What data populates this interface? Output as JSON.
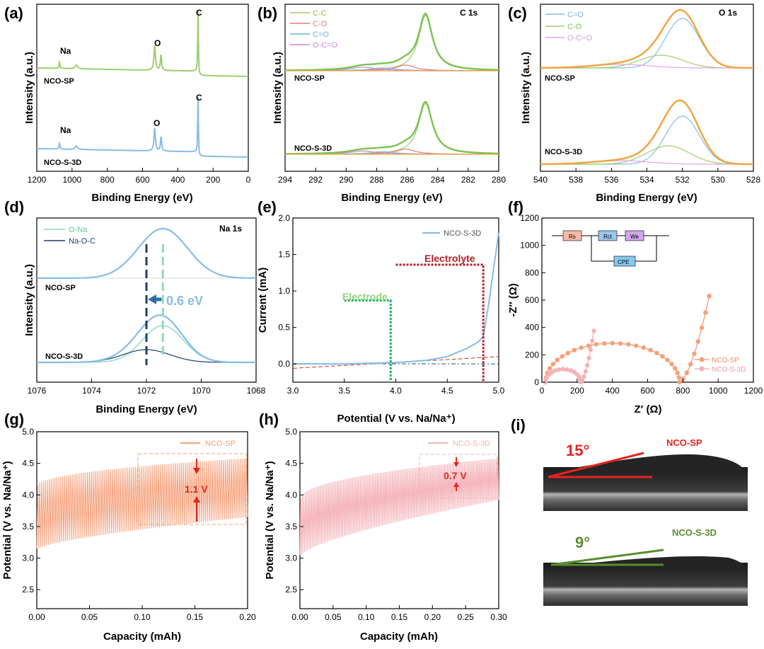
{
  "colors": {
    "green": "#9ccf6f",
    "green_dark": "#7cc34f",
    "blue": "#86bde6",
    "blue_dark": "#5a9fd6",
    "red": "#e87a7a",
    "violet": "#c987d8",
    "orange": "#f4a23a",
    "navy": "#1f3f66",
    "teal": "#8fd6c3",
    "salmon": "#f5a07a",
    "pink": "#f4b3b8",
    "elec_green": "#1fb15a",
    "elec_red": "#b21e24",
    "angle_red": "#e8231e",
    "angle_green": "#5a8c2e"
  },
  "panels": {
    "a": {
      "letter": "(a)",
      "xlabel": "Binding Energy (eV)",
      "ylabel": "Intensity (a.u.)",
      "xticks": [
        "1200",
        "1000",
        "800",
        "600",
        "400",
        "200",
        "0"
      ],
      "peaks_top": [
        "Na",
        "O",
        "C"
      ],
      "peaks_bottom": [
        "Na",
        "O",
        "C"
      ],
      "sample_top": "NCO-SP",
      "sample_bottom": "NCO-S-3D"
    },
    "b": {
      "letter": "(b)",
      "title": "C 1s",
      "xlabel": "Binding Energy (eV)",
      "ylabel": "Intensity (a.u.)",
      "xticks": [
        "294",
        "292",
        "290",
        "288",
        "286",
        "284",
        "282",
        "280"
      ],
      "legend": [
        "C-C",
        "C-O",
        "C=O",
        "O-C=O"
      ],
      "sample_top": "NCO-SP",
      "sample_bottom": "NCO-S-3D"
    },
    "c": {
      "letter": "(c)",
      "title": "O 1s",
      "xlabel": "Binding Energy (eV)",
      "ylabel": "Intensity (a.u.)",
      "xticks": [
        "540",
        "538",
        "536",
        "534",
        "532",
        "530",
        "528"
      ],
      "legend": [
        "C=O",
        "C-O",
        "O-C=O"
      ],
      "sample_top": "NCO-SP",
      "sample_bottom": "NCO-S-3D"
    },
    "d": {
      "letter": "(d)",
      "title": "Na 1s",
      "xlabel": "Binding Energy (eV)",
      "ylabel": "Intensity (a.u.)",
      "xticks": [
        "1076",
        "1074",
        "1072",
        "1070",
        "1068"
      ],
      "legend": [
        "O-Na",
        "Na-O-C"
      ],
      "shift": "0.6 eV",
      "sample_top": "NCO-SP",
      "sample_bottom": "NCO-S-3D"
    },
    "e": {
      "letter": "(e)",
      "xlabel": "Potential (V vs. Na/Na⁺)",
      "ylabel": "Current (mA)",
      "xticks": [
        "3.0",
        "3.5",
        "4.0",
        "4.5",
        "5.0"
      ],
      "yticks": [
        "0.0",
        "0.5",
        "1.0",
        "1.5",
        "2.0"
      ],
      "legend": "NCO-S-3D",
      "electrode": "Electrode",
      "electrolyte": "Electrolyte"
    },
    "f": {
      "letter": "(f)",
      "xlabel": "Z′ (Ω)",
      "ylabel": "-Z′′ (Ω)",
      "xticks": [
        "0",
        "200",
        "400",
        "600",
        "800",
        "1000",
        "1200"
      ],
      "yticks": [
        "0",
        "200",
        "400",
        "600",
        "800",
        "1000",
        "1200"
      ],
      "legend": [
        "NCO-SP",
        "NCO-S-3D"
      ],
      "circuit": [
        "Rs",
        "Rct",
        "We",
        "CPE"
      ]
    },
    "g": {
      "letter": "(g)",
      "xlabel": "Capacity (mAh)",
      "ylabel": "Potential (V vs. Na/Na⁺)",
      "xticks": [
        "0.00",
        "0.05",
        "0.10",
        "0.15",
        "0.20"
      ],
      "yticks": [
        "2.5",
        "3.0",
        "3.5",
        "4.0",
        "4.5",
        "5.0"
      ],
      "legend": "NCO-SP",
      "gap": "1.1 V"
    },
    "h": {
      "letter": "(h)",
      "xlabel": "Capacity (mAh)",
      "ylabel": "Potential (V vs. Na/Na⁺)",
      "xticks": [
        "0.00",
        "0.05",
        "0.10",
        "0.15",
        "0.20",
        "0.25",
        "0.30"
      ],
      "yticks": [
        "2.5",
        "3.0",
        "3.5",
        "4.0",
        "4.5",
        "5.0"
      ],
      "legend": "NCO-S-3D",
      "gap": "0.7 V"
    },
    "i": {
      "letter": "(i)",
      "angle_top": "15°",
      "label_top": "NCO-SP",
      "angle_bottom": "9°",
      "label_bottom": "NCO-S-3D"
    }
  },
  "chart_data": [
    {
      "panel": "a",
      "type": "line",
      "xlim": [
        1200,
        0
      ],
      "xlabel": "Binding Energy (eV)",
      "ylabel": "Intensity (a.u.)",
      "series": [
        {
          "name": "NCO-SP",
          "peaks": [
            {
              "label": "Na",
              "x": 1071,
              "y": 0.25
            },
            {
              "label": "O",
              "x": 531,
              "y": 0.35
            },
            {
              "label": "C",
              "x": 285,
              "y": 1.0
            }
          ]
        },
        {
          "name": "NCO-S-3D",
          "peaks": [
            {
              "label": "Na",
              "x": 1071,
              "y": 0.25
            },
            {
              "label": "O",
              "x": 531,
              "y": 0.35
            },
            {
              "label": "C",
              "x": 285,
              "y": 1.0
            }
          ]
        }
      ]
    },
    {
      "panel": "b",
      "type": "line",
      "title": "C 1s",
      "xlim": [
        294,
        280
      ],
      "series": [
        {
          "name": "C-C",
          "center": 284.8
        },
        {
          "name": "C-O",
          "center": 286.1
        },
        {
          "name": "C=O",
          "center": 287.6
        },
        {
          "name": "O-C=O",
          "center": 288.9
        }
      ]
    },
    {
      "panel": "c",
      "type": "line",
      "title": "O 1s",
      "xlim": [
        540,
        528
      ],
      "series": [
        {
          "name": "C=O",
          "center": 532.0
        },
        {
          "name": "C-O",
          "center": 533.0
        },
        {
          "name": "O-C=O",
          "center": 535.5
        }
      ]
    },
    {
      "panel": "d",
      "type": "line",
      "title": "Na 1s",
      "xlim": [
        1076,
        1068
      ],
      "series": [
        {
          "name": "O-Na",
          "center": 1071.4
        },
        {
          "name": "Na-O-C",
          "center": 1072.0
        }
      ]
    },
    {
      "panel": "e",
      "type": "line",
      "xlim": [
        3.0,
        5.0
      ],
      "ylim": [
        -0.25,
        2.0
      ],
      "series": [
        {
          "name": "NCO-S-3D",
          "x": [
            3.0,
            3.5,
            4.0,
            4.3,
            4.5,
            4.7,
            4.8,
            4.85,
            4.9,
            4.95,
            5.0
          ],
          "y": [
            0.0,
            0.0,
            0.02,
            0.05,
            0.1,
            0.22,
            0.3,
            0.38,
            0.8,
            1.3,
            1.8
          ]
        }
      ],
      "markers": [
        {
          "label": "Electrode",
          "x": 3.95
        },
        {
          "label": "Electrolyte",
          "x": 4.85
        }
      ]
    },
    {
      "panel": "f",
      "type": "scatter",
      "xlim": [
        0,
        1200
      ],
      "ylim": [
        0,
        1200
      ],
      "series": [
        {
          "name": "NCO-SP",
          "semicircle_end": 780,
          "tail_end": [
            950,
            720
          ]
        },
        {
          "name": "NCO-S-3D",
          "semicircle_end": 220,
          "tail_end": [
            295,
            375
          ]
        }
      ]
    },
    {
      "panel": "g",
      "type": "line",
      "xlim": [
        0,
        0.2
      ],
      "ylim": [
        2.2,
        5.0
      ],
      "series": [
        {
          "name": "NCO-SP",
          "upper_start": 4.15,
          "upper_end": 4.58,
          "lower_start": 3.15,
          "lower_end": 3.65
        }
      ],
      "annotation": "1.1 V"
    },
    {
      "panel": "h",
      "type": "line",
      "xlim": [
        0,
        0.3
      ],
      "ylim": [
        2.2,
        5.0
      ],
      "series": [
        {
          "name": "NCO-S-3D",
          "upper_start": 3.95,
          "upper_end": 4.58,
          "lower_start": 3.05,
          "lower_end": 3.92
        }
      ],
      "annotation": "0.7 V"
    }
  ]
}
